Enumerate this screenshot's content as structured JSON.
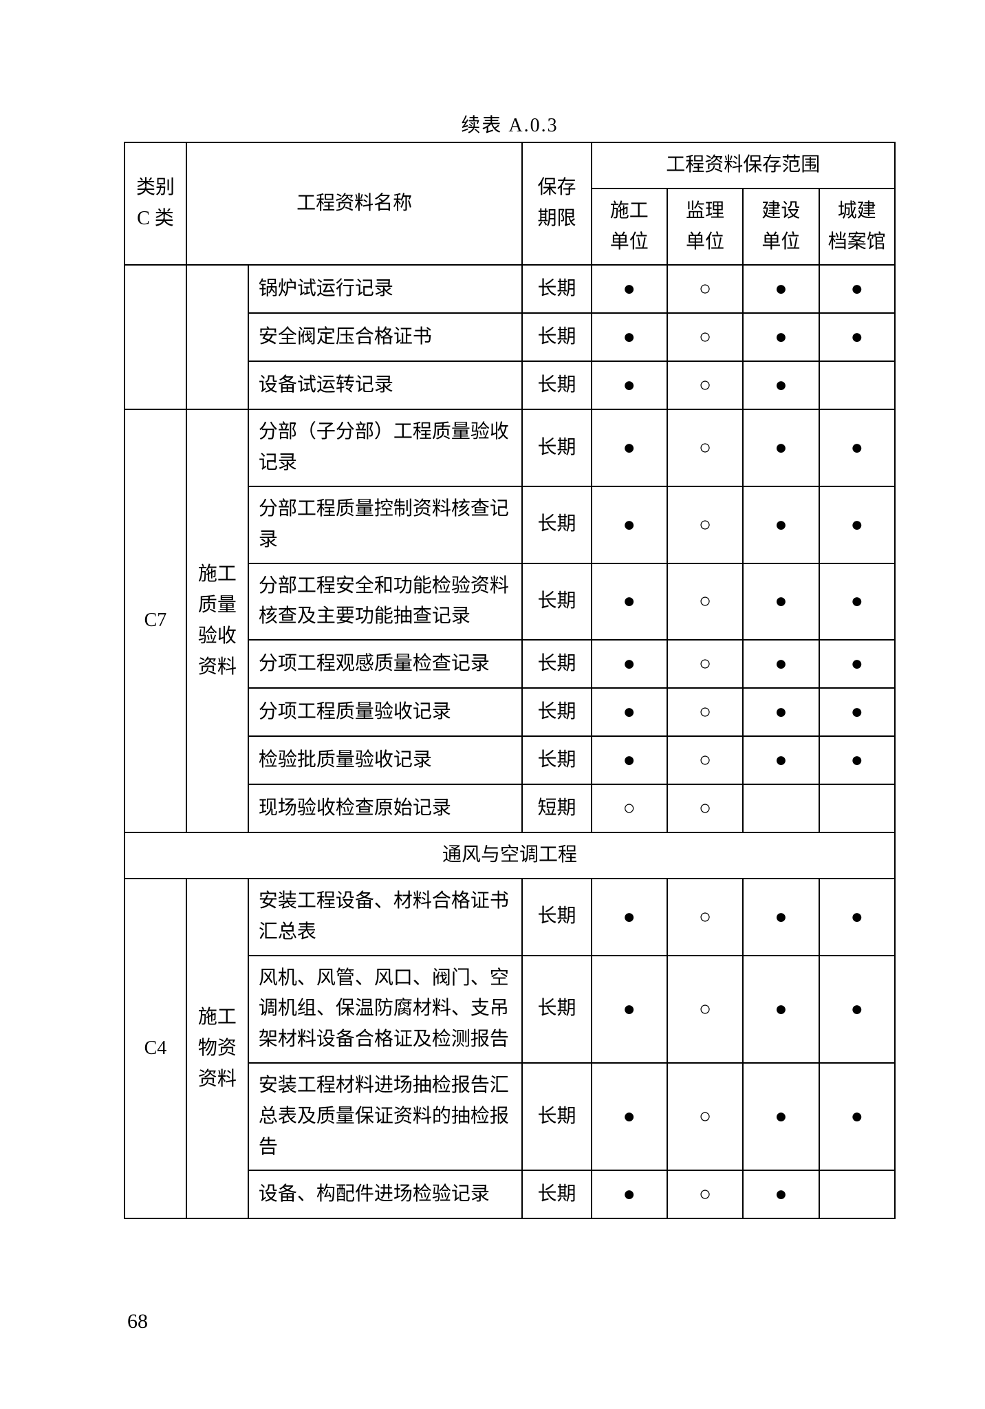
{
  "caption": "续表 A.0.3",
  "header": {
    "cat": "类别\nC 类",
    "name": "工程资料名称",
    "period": "保存\n期限",
    "scope_title": "工程资料保存范围",
    "scope_cols": [
      "施工\n单位",
      "监理\n单位",
      "建设\n单位",
      "城建\n档案馆"
    ]
  },
  "marks": {
    "filled": "●",
    "hollow": "○",
    "blank": ""
  },
  "block1_rows": [
    {
      "name": "锅炉试运行记录",
      "period": "长期",
      "m": [
        "filled",
        "hollow",
        "filled",
        "filled"
      ]
    },
    {
      "name": "安全阀定压合格证书",
      "period": "长期",
      "m": [
        "filled",
        "hollow",
        "filled",
        "filled"
      ]
    },
    {
      "name": "设备试运转记录",
      "period": "长期",
      "m": [
        "filled",
        "hollow",
        "filled",
        "blank"
      ]
    }
  ],
  "block2": {
    "cat": "C7",
    "group": "施工\n质量\n验收\n资料",
    "rows": [
      {
        "name": "分部（子分部）工程质量验收记录",
        "period": "长期",
        "m": [
          "filled",
          "hollow",
          "filled",
          "filled"
        ]
      },
      {
        "name": "分部工程质量控制资料核查记录",
        "period": "长期",
        "m": [
          "filled",
          "hollow",
          "filled",
          "filled"
        ]
      },
      {
        "name": "分部工程安全和功能检验资料核查及主要功能抽查记录",
        "period": "长期",
        "m": [
          "filled",
          "hollow",
          "filled",
          "filled"
        ]
      },
      {
        "name": "分项工程观感质量检查记录",
        "period": "长期",
        "m": [
          "filled",
          "hollow",
          "filled",
          "filled"
        ]
      },
      {
        "name": "分项工程质量验收记录",
        "period": "长期",
        "m": [
          "filled",
          "hollow",
          "filled",
          "filled"
        ]
      },
      {
        "name": "检验批质量验收记录",
        "period": "长期",
        "m": [
          "filled",
          "hollow",
          "filled",
          "filled"
        ]
      },
      {
        "name": "现场验收检查原始记录",
        "period": "短期",
        "m": [
          "hollow",
          "hollow",
          "blank",
          "blank"
        ]
      }
    ]
  },
  "section_title": "通风与空调工程",
  "block3": {
    "cat": "C4",
    "group": "施工\n物资\n资料",
    "rows": [
      {
        "name": "安装工程设备、材料合格证书汇总表",
        "period": "长期",
        "m": [
          "filled",
          "hollow",
          "filled",
          "filled"
        ]
      },
      {
        "name": "风机、风管、风口、阀门、空调机组、保温防腐材料、支吊架材料设备合格证及检测报告",
        "period": "长期",
        "m": [
          "filled",
          "hollow",
          "filled",
          "filled"
        ]
      },
      {
        "name": "安装工程材料进场抽检报告汇总表及质量保证资料的抽检报告",
        "period": "长期",
        "m": [
          "filled",
          "hollow",
          "filled",
          "filled"
        ]
      },
      {
        "name": "设备、构配件进场检验记录",
        "period": "长期",
        "m": [
          "filled",
          "hollow",
          "filled",
          "blank"
        ]
      }
    ]
  },
  "page_number": "68"
}
